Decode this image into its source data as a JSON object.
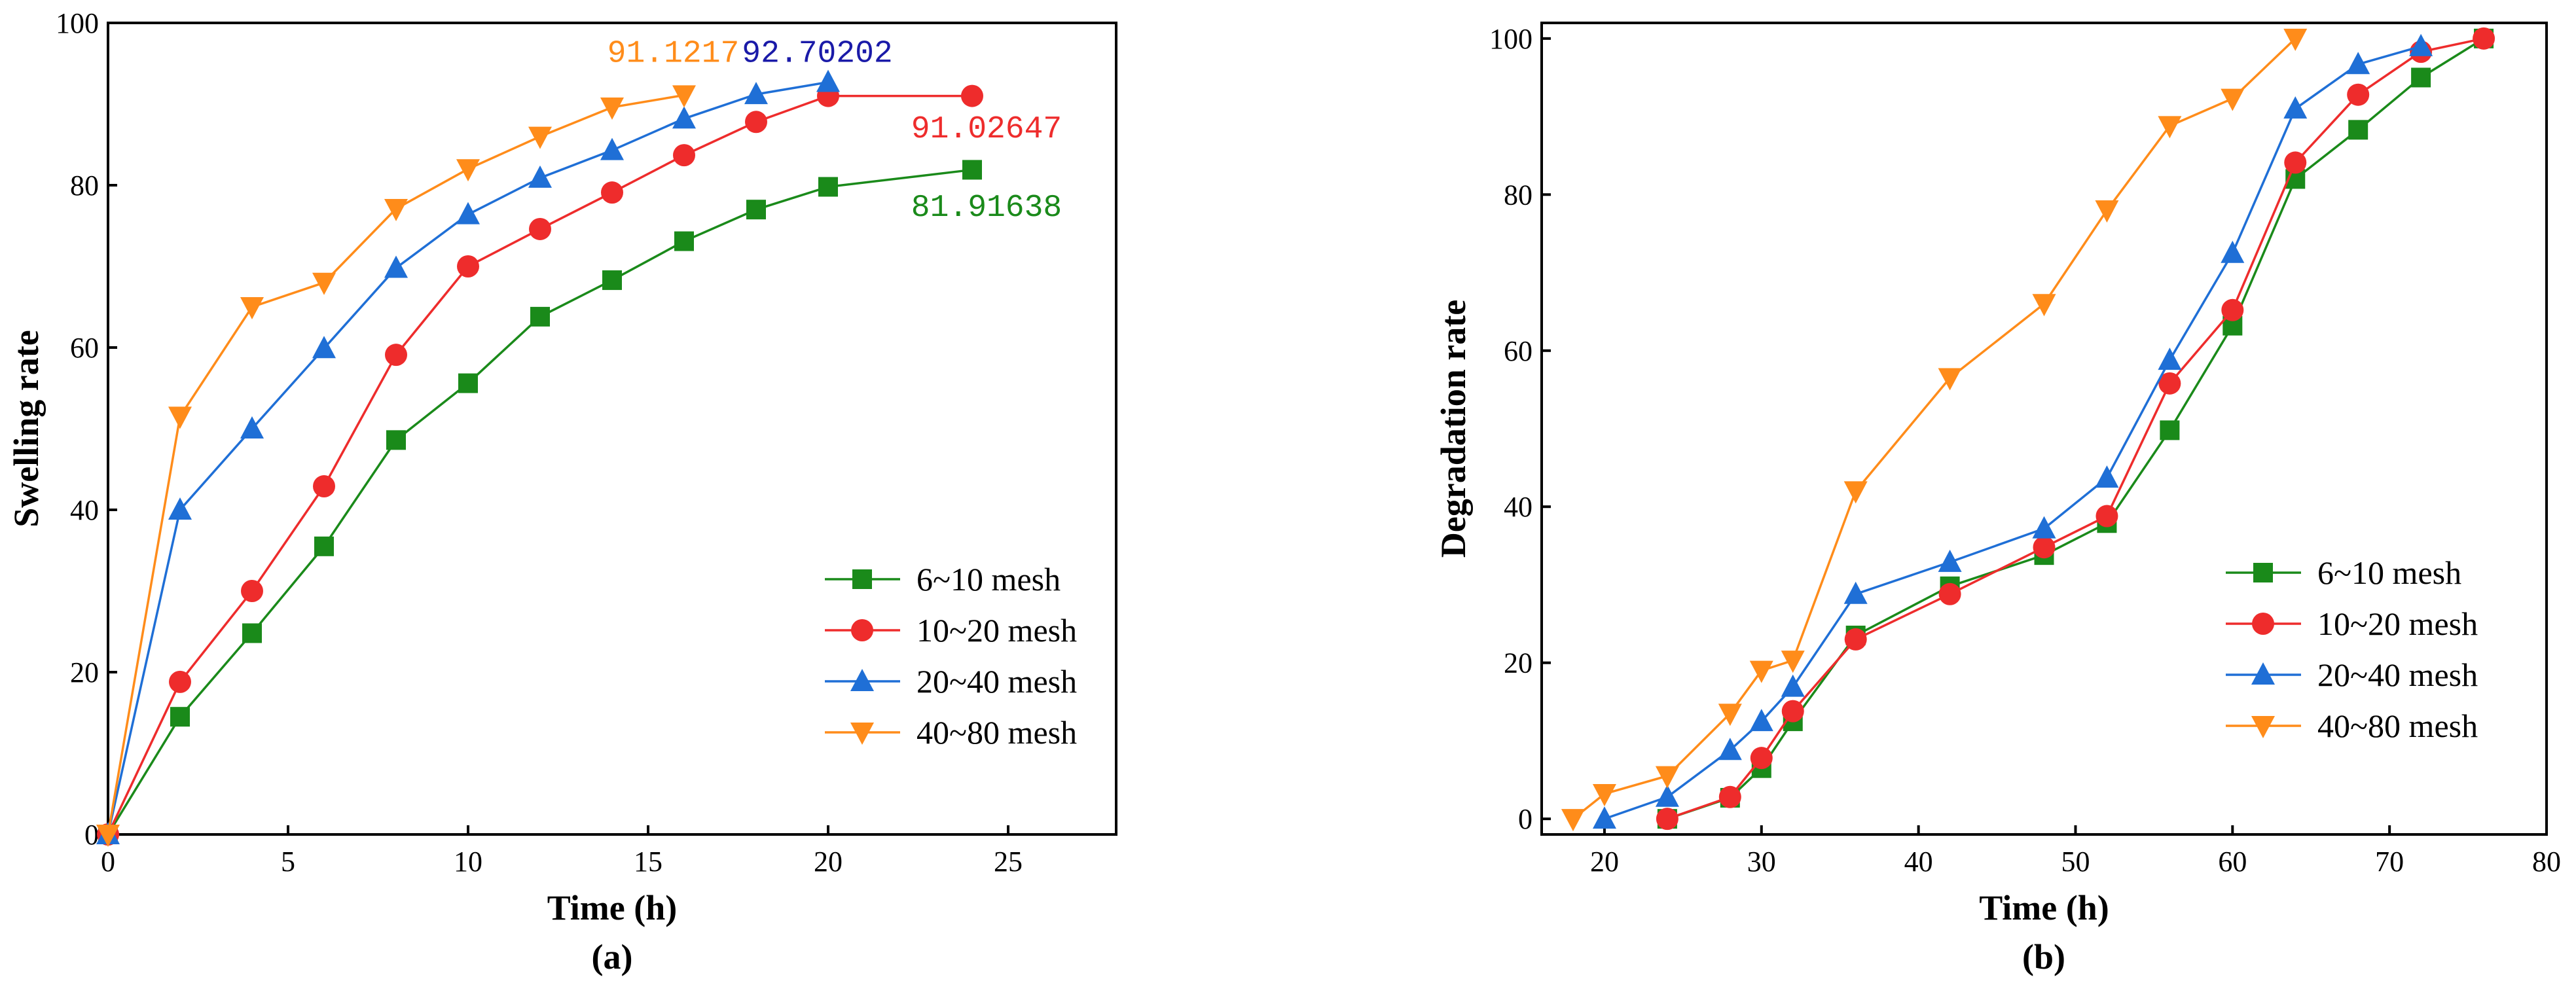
{
  "chart_data": [
    {
      "type": "line",
      "panel": "(a)",
      "xlabel": "Time (h)",
      "ylabel": "Swelling rate",
      "xlim": [
        0,
        28
      ],
      "ylim": [
        0,
        100
      ],
      "xticks": [
        0,
        5,
        10,
        15,
        20,
        25
      ],
      "yticks": [
        0,
        20,
        40,
        60,
        80,
        100
      ],
      "legend_position": "bottom-right",
      "series": [
        {
          "name": "6~10 mesh",
          "color": "#1a8a1a",
          "marker": "square",
          "x": [
            0,
            2,
            4,
            6,
            8,
            10,
            12,
            14,
            16,
            18,
            20,
            24
          ],
          "y": [
            0,
            14.5,
            24.8,
            35.5,
            48.6,
            55.6,
            63.8,
            68.3,
            73.1,
            77.0,
            79.8,
            81.9
          ]
        },
        {
          "name": "10~20 mesh",
          "color": "#ee2c2c",
          "marker": "circle",
          "x": [
            0,
            2,
            4,
            6,
            8,
            10,
            12,
            14,
            16,
            18,
            20,
            24
          ],
          "y": [
            0,
            18.8,
            30.0,
            42.9,
            59.1,
            70.0,
            74.6,
            79.1,
            83.7,
            87.8,
            91.0,
            91.0
          ]
        },
        {
          "name": "20~40 mesh",
          "color": "#1f6fd6",
          "marker": "triangle-up",
          "x": [
            0,
            2,
            4,
            6,
            8,
            10,
            12,
            14,
            16,
            18,
            20
          ],
          "y": [
            0,
            40.0,
            50.0,
            59.9,
            69.8,
            76.4,
            80.9,
            84.3,
            88.2,
            91.2,
            92.7
          ]
        },
        {
          "name": "40~80 mesh",
          "color": "#ff8c1a",
          "marker": "triangle-down",
          "x": [
            0,
            2,
            4,
            6,
            8,
            10,
            12,
            14,
            16
          ],
          "y": [
            0,
            51.5,
            65.0,
            68.0,
            77.1,
            82.0,
            86.0,
            89.6,
            91.1
          ]
        }
      ],
      "annotations": [
        {
          "text": "91.1217",
          "color": "#ff8c1a",
          "x": 15.7,
          "y": 95.2
        },
        {
          "text": "92.70202",
          "color": "#1a1aa8",
          "x": 19.7,
          "y": 95.2
        },
        {
          "text": "91.02647",
          "color": "#ee2c2c",
          "x": 24.4,
          "y": 85.9
        },
        {
          "text": "81.91638",
          "color": "#1a8a1a",
          "x": 24.4,
          "y": 76.2
        }
      ]
    },
    {
      "type": "line",
      "panel": "(b)",
      "xlabel": "Time (h)",
      "ylabel": "Degradation rate",
      "xlim": [
        16,
        80
      ],
      "ylim": [
        -2,
        102
      ],
      "xticks": [
        20,
        30,
        40,
        50,
        60,
        70,
        80
      ],
      "yticks": [
        0,
        20,
        40,
        60,
        80,
        100
      ],
      "legend_position": "bottom-right",
      "series": [
        {
          "name": "6~10 mesh",
          "color": "#1a8a1a",
          "marker": "square",
          "x": [
            24,
            28,
            30,
            32,
            36,
            42,
            48,
            52,
            56,
            60,
            64,
            68,
            72,
            76
          ],
          "y": [
            0,
            2.7,
            6.5,
            12.5,
            23.5,
            29.8,
            33.8,
            37.9,
            49.8,
            63.2,
            82.0,
            88.3,
            95.0,
            100
          ]
        },
        {
          "name": "10~20 mesh",
          "color": "#ee2c2c",
          "marker": "circle",
          "x": [
            24,
            28,
            30,
            32,
            36,
            42,
            48,
            52,
            56,
            60,
            64,
            68,
            72,
            76
          ],
          "y": [
            0,
            2.8,
            7.8,
            13.8,
            23.0,
            28.8,
            34.8,
            38.8,
            55.8,
            65.2,
            84.1,
            92.8,
            98.3,
            100
          ]
        },
        {
          "name": "20~40 mesh",
          "color": "#1f6fd6",
          "marker": "triangle-up",
          "x": [
            20,
            24,
            28,
            30,
            32,
            36,
            42,
            48,
            52,
            56,
            60,
            64,
            68,
            72
          ],
          "y": [
            0,
            2.8,
            8.8,
            12.5,
            16.9,
            28.8,
            32.9,
            37.2,
            43.7,
            58.8,
            72.5,
            91.0,
            96.7,
            99.0
          ]
        },
        {
          "name": "40~80 mesh",
          "color": "#ff8c1a",
          "marker": "triangle-down",
          "x": [
            18,
            20,
            24,
            28,
            30,
            32,
            36,
            42,
            48,
            52,
            56,
            60,
            64
          ],
          "y": [
            0,
            3.2,
            5.5,
            13.5,
            19.0,
            20.3,
            42.0,
            56.5,
            66.0,
            78.0,
            88.8,
            92.3,
            100
          ]
        }
      ]
    }
  ]
}
